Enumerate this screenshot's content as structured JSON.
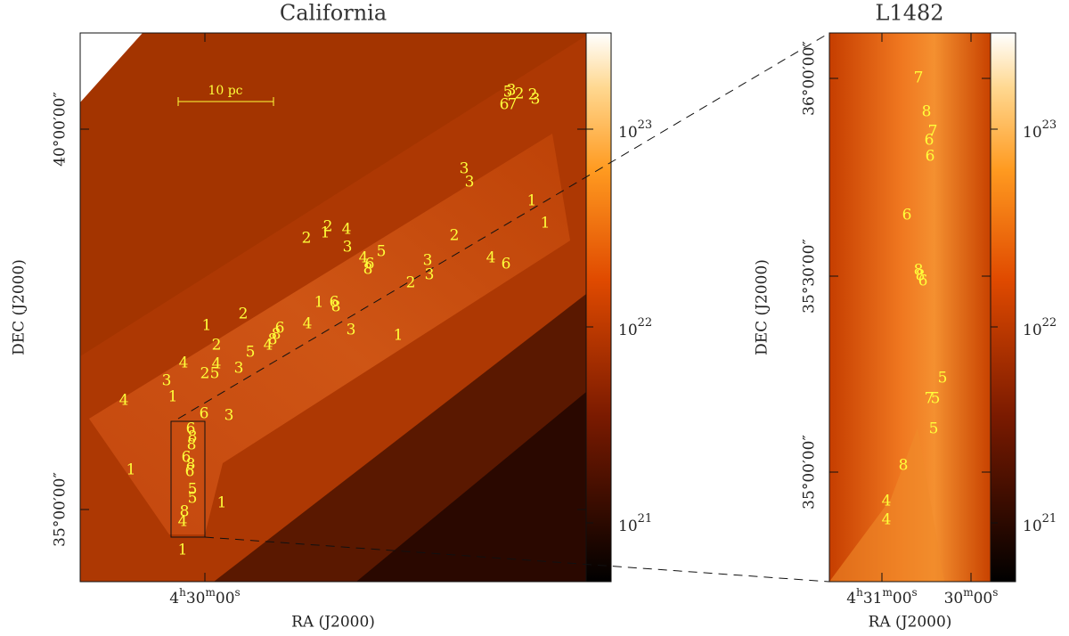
{
  "panels": [
    {
      "title": "California",
      "x_label": "RA (J2000)",
      "y_label": "DEC (J2000)",
      "x_ticks": [
        [
          {
            "text": "4"
          },
          {
            "text": "h",
            "sup": true
          },
          {
            "text": "30"
          },
          {
            "text": "m",
            "sup": true
          },
          {
            "text": "00"
          },
          {
            "text": "s",
            "sup": true
          }
        ]
      ],
      "y_ticks": [
        "40°00′00″",
        "35°00′00″"
      ],
      "colorbar_ticks": [
        {
          "base": "10",
          "exponent": "23"
        },
        {
          "base": "10",
          "exponent": "22"
        },
        {
          "base": "10",
          "exponent": "21"
        }
      ],
      "scale_bar": "10 pc",
      "markers": [
        "5",
        "2",
        "2",
        "3",
        "3",
        "6",
        "7",
        "3",
        "3",
        "1",
        "1",
        "2",
        "1",
        "4",
        "2",
        "3",
        "5",
        "4",
        "8",
        "6",
        "2",
        "3",
        "3",
        "2",
        "4",
        "6",
        "1",
        "6",
        "8",
        "2",
        "1",
        "6",
        "8",
        "8",
        "4",
        "3",
        "1",
        "4",
        "5",
        "2",
        "4",
        "4",
        "3",
        "2",
        "5",
        "3",
        "1",
        "4",
        "6",
        "3",
        "6",
        "8",
        "8",
        "6",
        "8",
        "6",
        "1",
        "5",
        "5",
        "1",
        "8",
        "4",
        "1"
      ]
    },
    {
      "title": "L1482",
      "x_label": "RA (J2000)",
      "y_label": "DEC (J2000)",
      "x_ticks": [
        [
          {
            "text": "4"
          },
          {
            "text": "h",
            "sup": true
          },
          {
            "text": "31"
          },
          {
            "text": "m",
            "sup": true
          },
          {
            "text": "00"
          },
          {
            "text": "s",
            "sup": true
          }
        ],
        [
          {
            "text": "30"
          },
          {
            "text": "m",
            "sup": true
          },
          {
            "text": "00"
          },
          {
            "text": "s",
            "sup": true
          }
        ]
      ],
      "y_ticks": [
        "36°00′00″",
        "35°30′00″",
        "35°00′00″"
      ],
      "colorbar_ticks": [
        {
          "base": "10",
          "exponent": "23"
        },
        {
          "base": "10",
          "exponent": "22"
        },
        {
          "base": "10",
          "exponent": "21"
        }
      ],
      "markers": [
        "7",
        "8",
        "7",
        "6",
        "6",
        "6",
        "8",
        "8",
        "6",
        "5",
        "5",
        "7",
        "5",
        "8",
        "4",
        "4"
      ]
    }
  ]
}
